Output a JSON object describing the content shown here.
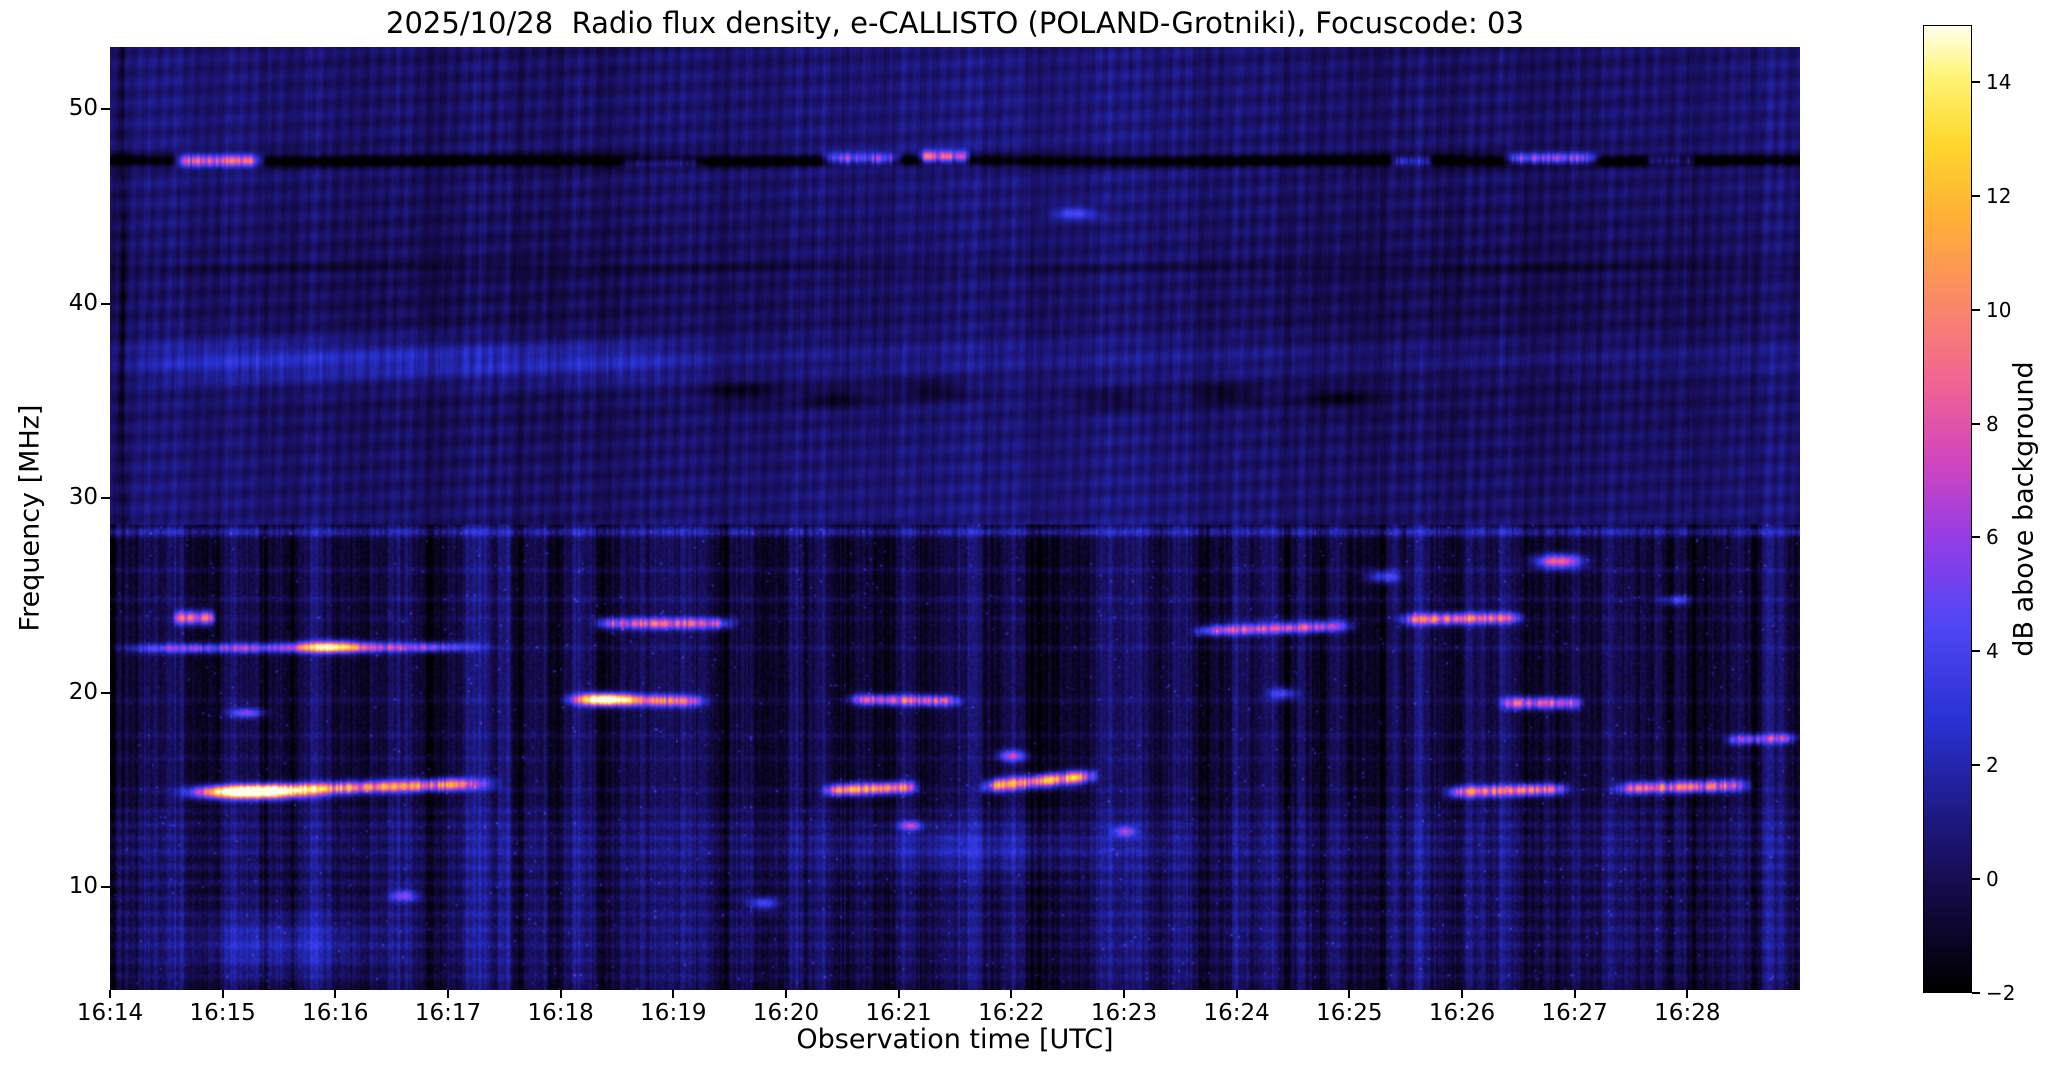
{
  "chart_data": {
    "type": "heatmap",
    "title": "2025/10/28  Radio flux density, e-CALLISTO (POLAND-Grotniki), Focuscode: 03",
    "date": "2025/10/28",
    "station": "POLAND-Grotniki",
    "focuscode": "03",
    "xlabel": "Observation time [UTC]",
    "ylabel": "Frequency [MHz]",
    "x_tick_labels": [
      "16:14",
      "16:15",
      "16:16",
      "16:17",
      "16:18",
      "16:19",
      "16:20",
      "16:21",
      "16:22",
      "16:23",
      "16:24",
      "16:25",
      "16:26",
      "16:27",
      "16:28"
    ],
    "x_start": "16:14",
    "x_end": "16:29",
    "xlim_minutes": [
      0,
      15
    ],
    "y_tick_labels": [
      "50",
      "40",
      "30",
      "20",
      "10"
    ],
    "y_tick_values": [
      50,
      40,
      30,
      20,
      10
    ],
    "ylim": [
      4.7,
      53.2
    ],
    "grid": false,
    "colorbar": {
      "label": "dB above background",
      "tick_labels": [
        "14",
        "12",
        "10",
        "8",
        "6",
        "4",
        "2",
        "0",
        "−2"
      ],
      "tick_values": [
        14,
        12,
        10,
        8,
        6,
        4,
        2,
        0,
        -2
      ],
      "vmin": -2,
      "vmax": 15,
      "colormap": "gnuplot2-like (black-blue-magenta-orange-yellow-white)",
      "stops": [
        [
          0.0,
          0,
          0,
          0
        ],
        [
          0.1,
          20,
          10,
          70
        ],
        [
          0.18,
          30,
          25,
          130
        ],
        [
          0.28,
          40,
          50,
          210
        ],
        [
          0.38,
          80,
          70,
          245
        ],
        [
          0.47,
          150,
          60,
          230
        ],
        [
          0.55,
          210,
          70,
          190
        ],
        [
          0.63,
          240,
          100,
          150
        ],
        [
          0.72,
          250,
          140,
          100
        ],
        [
          0.8,
          255,
          175,
          55
        ],
        [
          0.88,
          255,
          215,
          45
        ],
        [
          0.95,
          255,
          245,
          120
        ],
        [
          1.0,
          255,
          255,
          235
        ]
      ]
    },
    "features": {
      "noise_region_max_freq": 28.6,
      "horizontal_lines": [
        [
          26.3,
          0.8,
          0.16
        ],
        [
          24.8,
          0.9,
          0.16
        ],
        [
          23.8,
          0.6,
          0.16
        ],
        [
          22.3,
          0.8,
          0.16
        ],
        [
          19.6,
          0.7,
          0.16
        ],
        [
          17.8,
          0.7,
          0.16
        ],
        [
          16.6,
          0.6,
          0.16
        ],
        [
          15.0,
          0.7,
          0.16
        ],
        [
          13.9,
          0.8,
          0.18
        ],
        [
          13.2,
          1.0,
          0.2
        ],
        [
          12.5,
          0.9,
          0.2
        ],
        [
          11.8,
          1.0,
          0.2
        ],
        [
          11.0,
          0.9,
          0.2
        ],
        [
          10.2,
          1.0,
          0.2
        ],
        [
          9.4,
          0.9,
          0.2
        ],
        [
          8.6,
          0.9,
          0.2
        ],
        [
          7.8,
          0.8,
          0.2
        ],
        [
          7.0,
          0.8,
          0.2
        ],
        [
          6.2,
          0.7,
          0.2
        ],
        [
          5.4,
          0.7,
          0.2
        ],
        [
          12.0,
          0.5,
          1.5
        ],
        [
          7.5,
          0.4,
          1.8
        ]
      ],
      "tracks": [
        {
          "t0": 0.0,
          "t1": 15.0,
          "f0": 47.4,
          "f1": 47.4,
          "w": 0.3,
          "a": -3.2
        },
        {
          "t0": 0.0,
          "t1": 15.0,
          "f0": 41.9,
          "f1": 41.9,
          "w": 0.2,
          "a": -0.8
        },
        {
          "t0": 0.0,
          "t1": 5.5,
          "f0": 37.0,
          "f1": 37.0,
          "w": 1.1,
          "a": 1.6
        },
        {
          "t0": 0.0,
          "t1": 15.0,
          "f0": 37.3,
          "f1": 37.3,
          "w": 0.95,
          "a": 0.7
        },
        {
          "t0": 0.0,
          "t1": 15.0,
          "f0": 28.3,
          "f1": 28.3,
          "w": 0.22,
          "a": 2.4
        },
        {
          "t0": 0.55,
          "t1": 1.4,
          "f0": 47.4,
          "f1": 47.4,
          "w": 0.3,
          "a": 10
        },
        {
          "t0": 4.5,
          "t1": 5.3,
          "f0": 47.3,
          "f1": 47.3,
          "w": 0.22,
          "a": 3
        },
        {
          "t0": 6.3,
          "t1": 7.05,
          "f0": 47.5,
          "f1": 47.5,
          "w": 0.28,
          "a": 8
        },
        {
          "t0": 7.15,
          "t1": 7.65,
          "f0": 47.6,
          "f1": 47.6,
          "w": 0.3,
          "a": 9
        },
        {
          "t0": 11.35,
          "t1": 11.75,
          "f0": 47.4,
          "f1": 47.4,
          "w": 0.25,
          "a": 5
        },
        {
          "t0": 12.35,
          "t1": 13.25,
          "f0": 47.5,
          "f1": 47.5,
          "w": 0.28,
          "a": 8
        },
        {
          "t0": 13.6,
          "t1": 14.1,
          "f0": 47.4,
          "f1": 47.4,
          "w": 0.22,
          "a": 4
        },
        {
          "t0": 0.0,
          "t1": 3.45,
          "f0": 22.3,
          "f1": 22.4,
          "w": 0.25,
          "a": 6
        },
        {
          "t0": 0.55,
          "t1": 0.95,
          "f0": 23.9,
          "f1": 23.9,
          "w": 0.35,
          "a": 9
        },
        {
          "t0": 4.25,
          "t1": 5.6,
          "f0": 23.6,
          "f1": 23.6,
          "w": 0.28,
          "a": 8
        },
        {
          "t0": 9.55,
          "t1": 11.1,
          "f0": 23.2,
          "f1": 23.5,
          "w": 0.28,
          "a": 8
        },
        {
          "t0": 11.4,
          "t1": 12.6,
          "f0": 23.8,
          "f1": 23.9,
          "w": 0.3,
          "a": 9
        },
        {
          "t0": 4.0,
          "t1": 5.35,
          "f0": 19.7,
          "f1": 19.6,
          "w": 0.3,
          "a": 9
        },
        {
          "t0": 6.5,
          "t1": 7.6,
          "f0": 19.7,
          "f1": 19.6,
          "w": 0.28,
          "a": 8
        },
        {
          "t0": 12.3,
          "t1": 13.1,
          "f0": 19.5,
          "f1": 19.5,
          "w": 0.3,
          "a": 8
        },
        {
          "t0": 0.6,
          "t1": 3.5,
          "f0": 14.9,
          "f1": 15.4,
          "w": 0.3,
          "a": 11
        },
        {
          "t0": 6.3,
          "t1": 7.2,
          "f0": 15.0,
          "f1": 15.2,
          "w": 0.3,
          "a": 11
        },
        {
          "t0": 7.7,
          "t1": 8.8,
          "f0": 15.2,
          "f1": 15.8,
          "w": 0.32,
          "a": 12
        },
        {
          "t0": 11.8,
          "t1": 13.0,
          "f0": 14.9,
          "f1": 15.1,
          "w": 0.3,
          "a": 9
        },
        {
          "t0": 13.3,
          "t1": 14.6,
          "f0": 15.1,
          "f1": 15.3,
          "w": 0.3,
          "a": 9
        },
        {
          "t0": 14.3,
          "t1": 15.0,
          "f0": 17.6,
          "f1": 17.7,
          "w": 0.25,
          "a": 6
        }
      ],
      "blobs": [
        {
          "t": 8.55,
          "f": 44.7,
          "wt": 0.18,
          "wf": 0.3,
          "a": 4
        },
        {
          "t": 1.95,
          "f": 22.4,
          "wt": 0.28,
          "wf": 0.3,
          "a": 10
        },
        {
          "t": 1.3,
          "f": 14.9,
          "wt": 0.45,
          "wf": 0.35,
          "a": 13
        },
        {
          "t": 4.4,
          "f": 19.7,
          "wt": 0.2,
          "wf": 0.3,
          "a": 11
        },
        {
          "t": 12.85,
          "f": 26.8,
          "wt": 0.2,
          "wf": 0.35,
          "a": 10
        },
        {
          "t": 11.3,
          "f": 26.0,
          "wt": 0.15,
          "wf": 0.3,
          "a": 5
        },
        {
          "t": 1.2,
          "f": 19.0,
          "wt": 0.15,
          "wf": 0.25,
          "a": 6
        },
        {
          "t": 8.0,
          "f": 16.8,
          "wt": 0.12,
          "wf": 0.3,
          "a": 7
        },
        {
          "t": 7.1,
          "f": 13.2,
          "wt": 0.1,
          "wf": 0.25,
          "a": 6
        },
        {
          "t": 9.0,
          "f": 12.9,
          "wt": 0.1,
          "wf": 0.25,
          "a": 6
        },
        {
          "t": 2.6,
          "f": 9.6,
          "wt": 0.12,
          "wf": 0.3,
          "a": 5
        },
        {
          "t": 5.8,
          "f": 9.2,
          "wt": 0.12,
          "wf": 0.3,
          "a": 5
        },
        {
          "t": 10.4,
          "f": 20.0,
          "wt": 0.12,
          "wf": 0.3,
          "a": 5
        },
        {
          "t": 13.9,
          "f": 24.8,
          "wt": 0.12,
          "wf": 0.25,
          "a": 4
        },
        {
          "t": 1.5,
          "f": 7.0,
          "wt": 0.8,
          "wf": 1.5,
          "a": 2.0
        },
        {
          "t": 7.6,
          "f": 12.0,
          "wt": 1.2,
          "wf": 1.2,
          "a": 1.5
        },
        {
          "t": 0.1,
          "f": 30.0,
          "wt": 0.04,
          "wf": 60,
          "a": -2.0
        },
        {
          "t": 5.6,
          "f": 35.5,
          "wt": 0.3,
          "wf": 0.5,
          "a": -1.6
        },
        {
          "t": 6.4,
          "f": 35.2,
          "wt": 0.3,
          "wf": 0.5,
          "a": -1.6
        },
        {
          "t": 7.3,
          "f": 35.6,
          "wt": 0.35,
          "wf": 0.5,
          "a": -1.6
        },
        {
          "t": 8.9,
          "f": 35.1,
          "wt": 0.3,
          "wf": 0.5,
          "a": -1.5
        },
        {
          "t": 9.9,
          "f": 35.4,
          "wt": 0.35,
          "wf": 0.5,
          "a": -1.6
        },
        {
          "t": 10.9,
          "f": 35.2,
          "wt": 0.3,
          "wf": 0.5,
          "a": -1.5
        }
      ]
    }
  }
}
